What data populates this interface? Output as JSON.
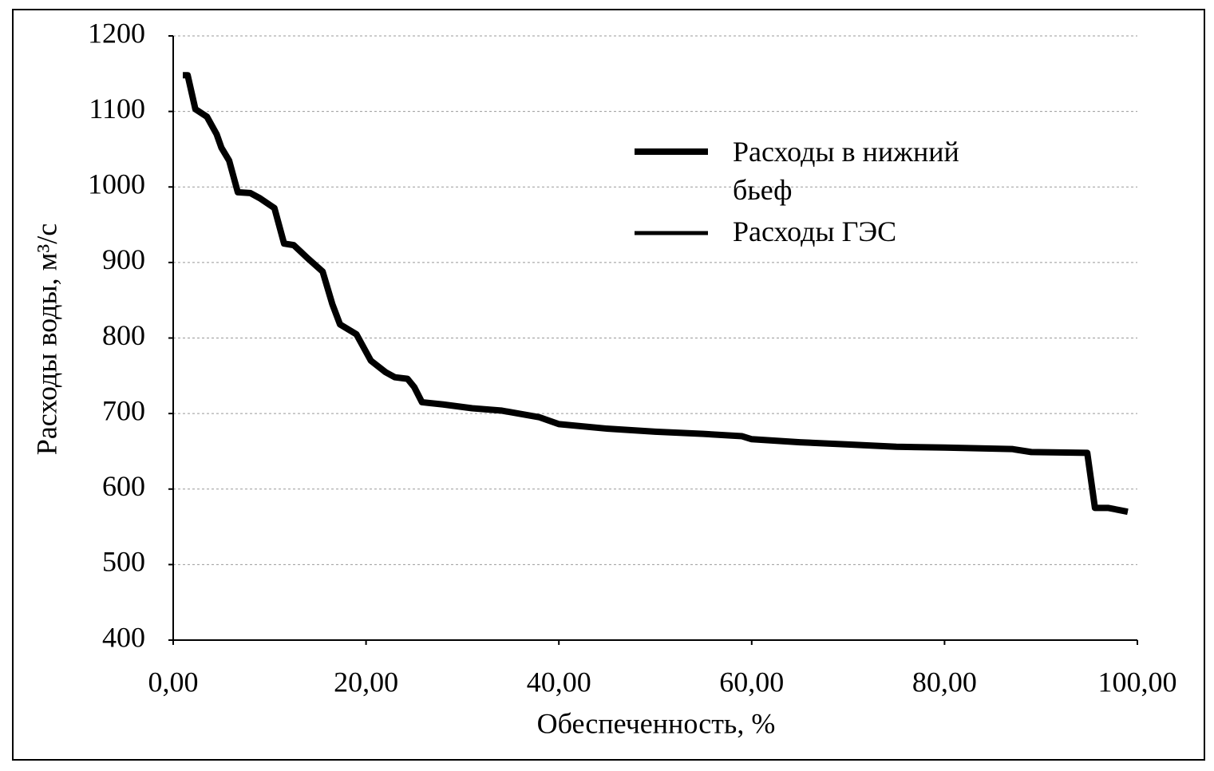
{
  "chart_data": {
    "type": "line",
    "x_label": "Обеспеченность, %",
    "y_label": "Расходы воды, м³/с",
    "xlim": [
      0,
      100
    ],
    "xticks": [
      {
        "value": 0,
        "label": "0,00"
      },
      {
        "value": 20,
        "label": "20,00"
      },
      {
        "value": 40,
        "label": "40,00"
      },
      {
        "value": 60,
        "label": "60,00"
      },
      {
        "value": 80,
        "label": "80,00"
      },
      {
        "value": 100,
        "label": "100,00"
      }
    ],
    "ylim": [
      400,
      1200
    ],
    "yticks": [
      400,
      500,
      600,
      700,
      800,
      900,
      1000,
      1100,
      1200
    ],
    "grid": true,
    "legend": "upper right",
    "x": [
      1,
      1.5,
      2.3,
      3.5,
      4.5,
      5,
      5.8,
      6.7,
      8,
      9,
      10.5,
      11.5,
      12.5,
      14,
      15.5,
      16.5,
      17.3,
      19,
      20.5,
      22,
      23,
      24.3,
      25,
      25.8,
      28,
      31,
      34,
      38,
      40,
      45,
      50,
      55,
      59,
      60,
      65,
      70,
      75,
      80,
      87,
      89,
      94.8,
      95.6,
      97,
      99
    ],
    "series": [
      {
        "name": "Расходы в нижний бьеф",
        "color": "#000000",
        "values": [
          1148,
          1148,
          1103,
          1093,
          1070,
          1052,
          1035,
          993,
          992,
          985,
          972,
          925,
          923,
          905,
          888,
          845,
          818,
          805,
          770,
          755,
          748,
          746,
          735,
          715,
          712,
          707,
          704,
          695,
          686,
          680,
          676,
          673,
          670,
          666,
          662,
          659,
          656,
          655,
          653,
          649,
          648,
          575,
          575,
          570
        ]
      },
      {
        "name": "Расходы ГЭС",
        "color": "#000000",
        "values": [
          1148,
          1148,
          1103,
          1093,
          1070,
          1052,
          1035,
          993,
          992,
          985,
          972,
          925,
          923,
          905,
          888,
          845,
          818,
          805,
          770,
          755,
          748,
          746,
          735,
          715,
          712,
          707,
          704,
          695,
          686,
          680,
          676,
          673,
          670,
          666,
          662,
          659,
          656,
          655,
          653,
          649,
          648,
          575,
          575,
          570
        ]
      }
    ]
  }
}
